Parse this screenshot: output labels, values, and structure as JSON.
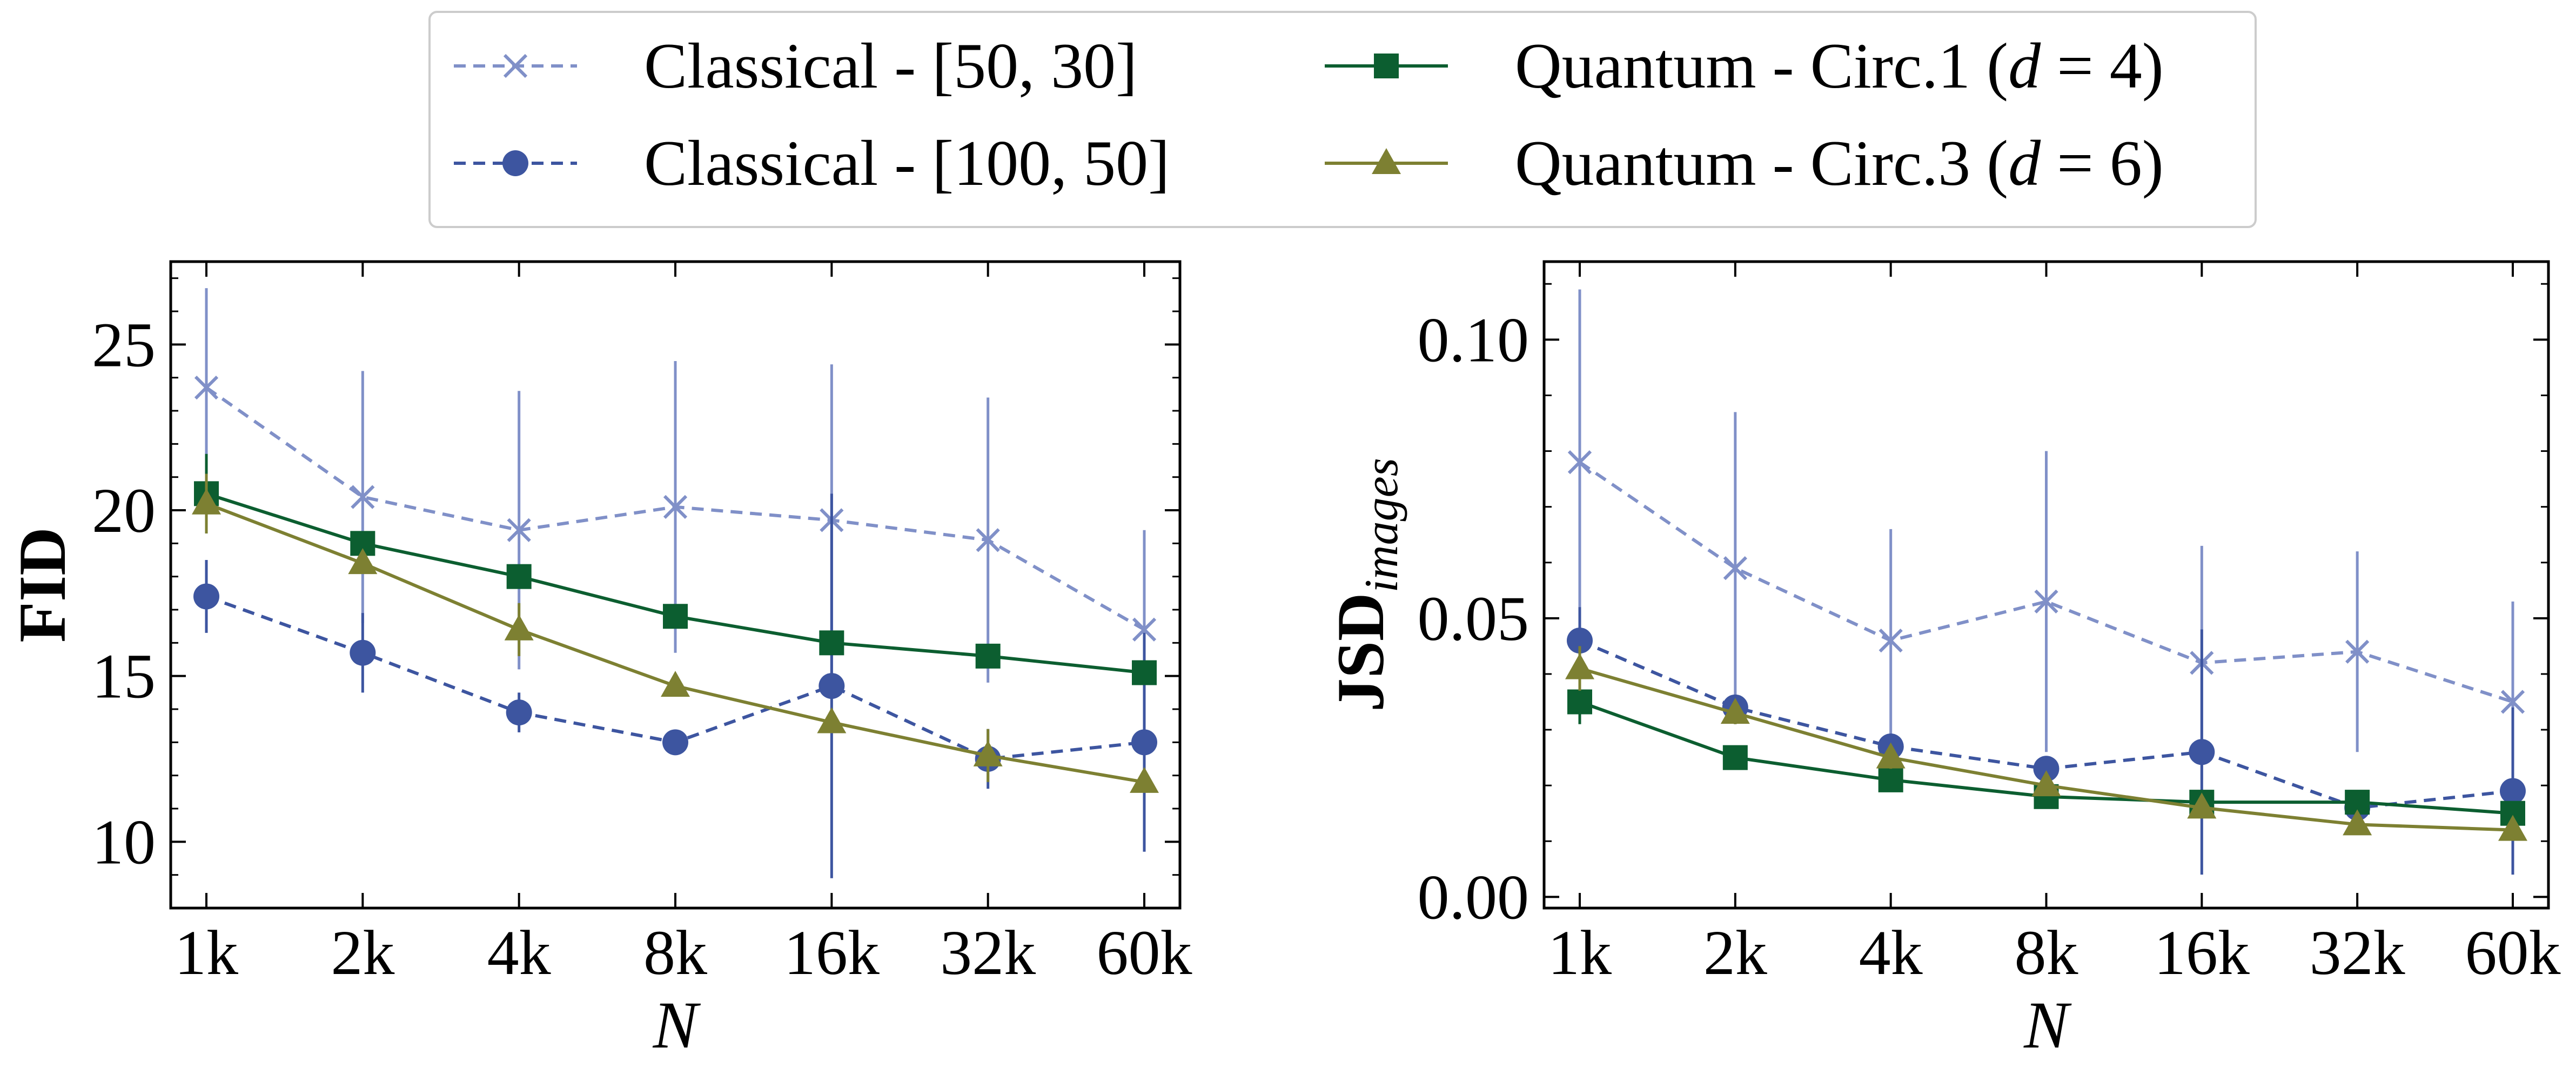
{
  "legend": {
    "entries": [
      {
        "series": 0,
        "label_main": "Classical - [50, 30]",
        "label_math": "",
        "label_tail": ""
      },
      {
        "series": 1,
        "label_main": "Classical - [100, 50]",
        "label_math": "",
        "label_tail": ""
      },
      {
        "series": 2,
        "label_main": "Quantum - Circ.1 (",
        "label_math": "d",
        "label_tail": " = 4)"
      },
      {
        "series": 3,
        "label_main": "Quantum - Circ.3 (",
        "label_math": "d",
        "label_tail": " = 6)"
      }
    ]
  },
  "chart_data": [
    {
      "type": "line",
      "xlabel": "N",
      "ylabel": "FID",
      "ylabel_sub": "",
      "x": [
        "1k",
        "2k",
        "4k",
        "8k",
        "16k",
        "32k",
        "60k"
      ],
      "ylim": [
        8,
        27.5
      ],
      "yticks": [
        10,
        15,
        20,
        25
      ],
      "ytick_labels": [
        "10",
        "15",
        "20",
        "25"
      ],
      "minor_y_step": 1,
      "series": [
        {
          "name": "Classical - [50, 30]",
          "color": "#8090c8",
          "marker": "x",
          "dash": true,
          "values": [
            23.7,
            20.4,
            19.4,
            20.1,
            19.7,
            19.1,
            16.4
          ],
          "err": [
            3.0,
            3.8,
            4.2,
            4.4,
            4.7,
            4.3,
            3.0
          ]
        },
        {
          "name": "Classical - [100, 50]",
          "color": "#3d55a0",
          "marker": "o",
          "dash": true,
          "values": [
            17.4,
            15.7,
            13.9,
            13.0,
            14.7,
            12.5,
            13.0
          ],
          "err": [
            1.1,
            1.2,
            0.6,
            0.0,
            5.8,
            0.9,
            3.3
          ]
        },
        {
          "name": "Quantum - Circ.1 (d = 4)",
          "color": "#0c5e30",
          "marker": "s",
          "dash": false,
          "values": [
            20.5,
            19.0,
            18.0,
            16.8,
            16.0,
            15.6,
            15.1
          ],
          "err": [
            1.2,
            0,
            0,
            0,
            0,
            0,
            0
          ]
        },
        {
          "name": "Quantum - Circ.3 (d = 6)",
          "color": "#7d8032",
          "marker": "^",
          "dash": false,
          "values": [
            20.2,
            18.4,
            16.4,
            14.7,
            13.6,
            12.6,
            11.8
          ],
          "err": [
            0.9,
            0,
            0.8,
            0,
            0,
            0.8,
            0
          ]
        }
      ]
    },
    {
      "type": "line",
      "xlabel": "N",
      "ylabel": "JSD",
      "ylabel_sub": "images",
      "x": [
        "1k",
        "2k",
        "4k",
        "8k",
        "16k",
        "32k",
        "60k"
      ],
      "ylim": [
        -0.002,
        0.114
      ],
      "yticks": [
        0.0,
        0.05,
        0.1
      ],
      "ytick_labels": [
        "0.00",
        "0.05",
        "0.10"
      ],
      "minor_y_step": 0.01,
      "series": [
        {
          "name": "Classical - [50, 30]",
          "color": "#8090c8",
          "marker": "x",
          "dash": true,
          "values": [
            0.078,
            0.059,
            0.046,
            0.053,
            0.042,
            0.044,
            0.035
          ],
          "err": [
            0.031,
            0.028,
            0.02,
            0.027,
            0.021,
            0.018,
            0.018
          ]
        },
        {
          "name": "Classical - [100, 50]",
          "color": "#3d55a0",
          "marker": "o",
          "dash": true,
          "values": [
            0.046,
            0.034,
            0.027,
            0.023,
            0.026,
            0.016,
            0.019
          ],
          "err": [
            0.006,
            0.0,
            0.0,
            0.0,
            0.022,
            0.0,
            0.015
          ]
        },
        {
          "name": "Quantum - Circ.1 (d = 4)",
          "color": "#0c5e30",
          "marker": "s",
          "dash": false,
          "values": [
            0.035,
            0.025,
            0.021,
            0.018,
            0.017,
            0.017,
            0.015
          ],
          "err": [
            0.004,
            0.002,
            0,
            0,
            0,
            0,
            0
          ]
        },
        {
          "name": "Quantum - Circ.3 (d = 6)",
          "color": "#7d8032",
          "marker": "^",
          "dash": false,
          "values": [
            0.041,
            0.033,
            0.025,
            0.02,
            0.016,
            0.013,
            0.012
          ],
          "err": [
            0.004,
            0.002,
            0.002,
            0,
            0,
            0,
            0
          ]
        }
      ]
    }
  ]
}
